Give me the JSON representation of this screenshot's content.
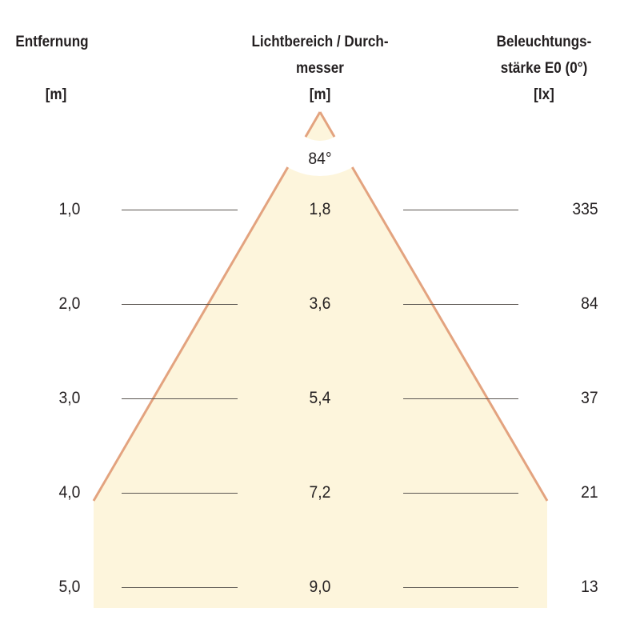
{
  "headers": {
    "distance": {
      "title": "Entfernung",
      "unit": "[m]"
    },
    "diameter": {
      "title_line1": "Lichtbereich / Durch-",
      "title_line2": "messer",
      "unit": "[m]"
    },
    "illuminance": {
      "title_line1": "Beleuchtungs-",
      "title_line2": "stärke E0 (0°)",
      "unit": "[lx]"
    }
  },
  "beam_angle": "84°",
  "rows": [
    {
      "distance": "1,0",
      "diameter": "1,8",
      "illuminance": "335"
    },
    {
      "distance": "2,0",
      "diameter": "3,6",
      "illuminance": "84"
    },
    {
      "distance": "3,0",
      "diameter": "5,4",
      "illuminance": "37"
    },
    {
      "distance": "4,0",
      "diameter": "7,2",
      "illuminance": "21"
    },
    {
      "distance": "5,0",
      "diameter": "9,0",
      "illuminance": "13"
    }
  ],
  "colors": {
    "cone_fill": "#fdf5dc",
    "cone_edge": "#e3a37f",
    "text": "#231f20"
  }
}
